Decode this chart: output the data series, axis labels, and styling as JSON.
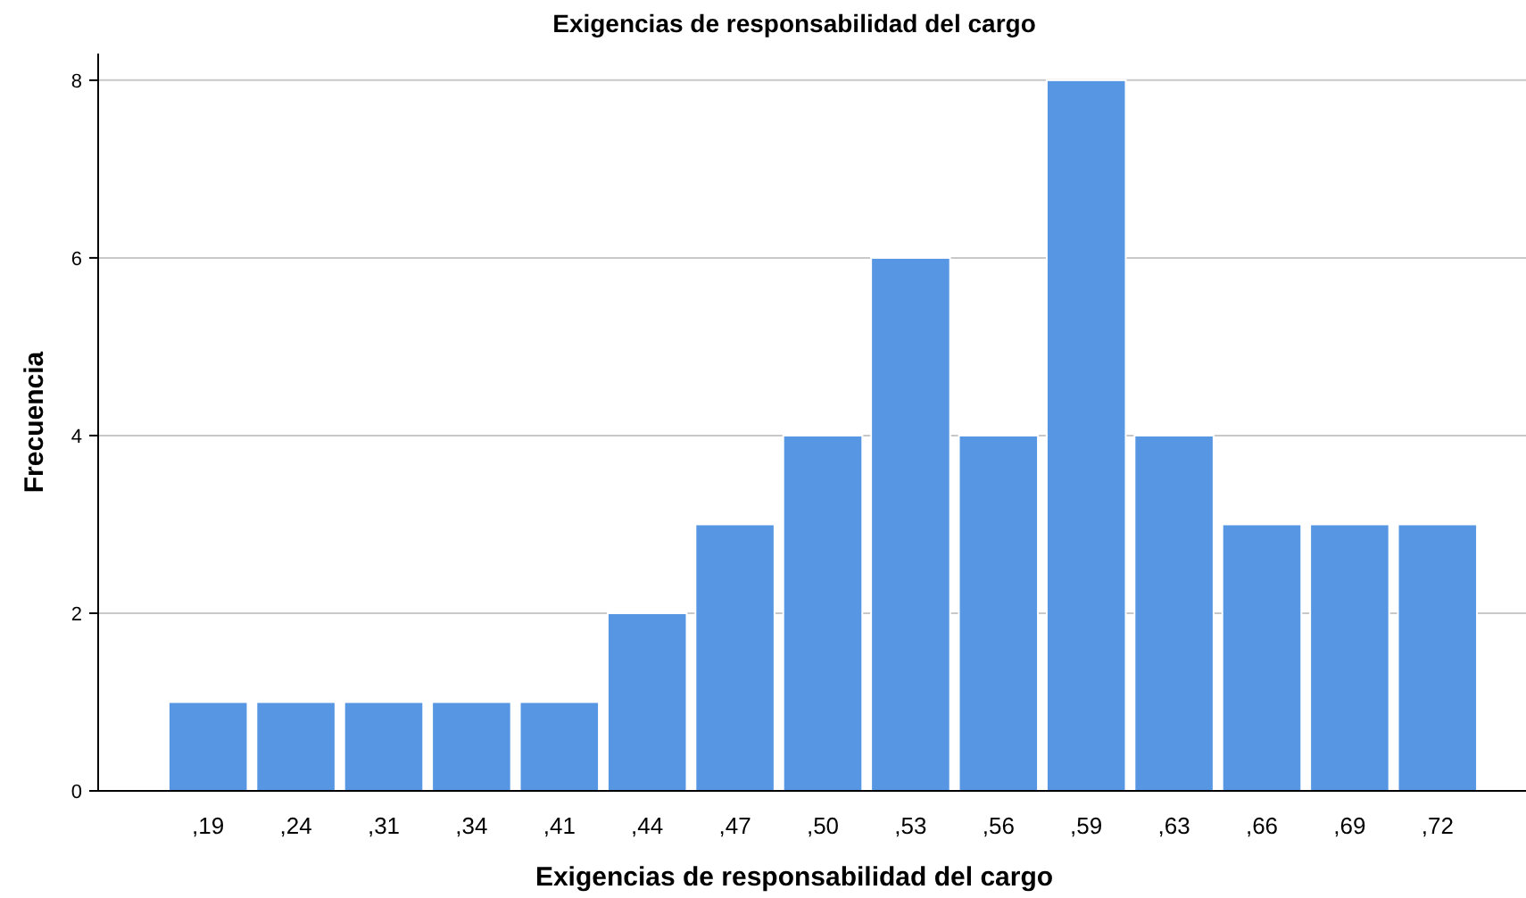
{
  "chart_data": {
    "type": "bar",
    "title": "Exigencias de responsabilidad del cargo",
    "xlabel": "Exigencias de responsabilidad del cargo",
    "ylabel": "Frecuencia",
    "categories": [
      ",19",
      ",24",
      ",31",
      ",34",
      ",41",
      ",44",
      ",47",
      ",50",
      ",53",
      ",56",
      ",59",
      ",63",
      ",66",
      ",69",
      ",72"
    ],
    "values": [
      1,
      1,
      1,
      1,
      1,
      2,
      3,
      4,
      6,
      4,
      8,
      4,
      3,
      3,
      3
    ],
    "color": "#5796e3",
    "ylim": [
      0,
      8.3
    ],
    "yticks": [
      0,
      2,
      4,
      6,
      8
    ],
    "grid": "y"
  }
}
